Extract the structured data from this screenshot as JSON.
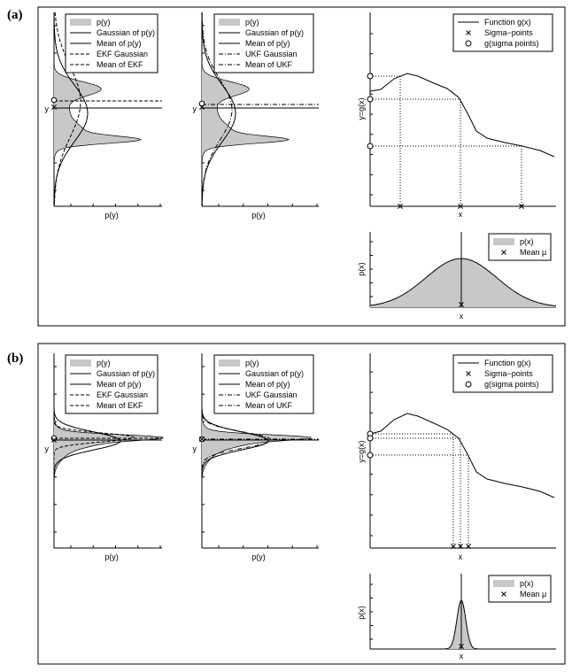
{
  "panels": [
    {
      "label": "(a)",
      "plots": {
        "ekf": {
          "xlabel": "p(y)",
          "ylabel": "y",
          "legend": [
            "p(y)",
            "Gaussian of p(y)",
            "Mean of p(y)",
            "EKF Gaussian",
            "Mean of EKF"
          ]
        },
        "ukf": {
          "xlabel": "p(y)",
          "ylabel": "y",
          "legend": [
            "p(y)",
            "Gaussian of p(y)",
            "Mean of p(y)",
            "UKF Gaussian",
            "Mean of UKF"
          ]
        },
        "func": {
          "xlabel": "x",
          "ylabel": "y=g(x)",
          "legend": [
            "Function g(x)",
            "Sigma−points",
            "g(sigma points)"
          ]
        },
        "px": {
          "xlabel": "x",
          "ylabel": "p(x)",
          "legend": [
            "p(x)",
            "Mean μ"
          ]
        }
      }
    },
    {
      "label": "(b)",
      "plots": {
        "ekf": {
          "xlabel": "p(y)",
          "ylabel": "y",
          "legend": [
            "p(y)",
            "Gaussian of p(y)",
            "Mean of p(y)",
            "EKF Gaussian",
            "Mean of EKF"
          ]
        },
        "ukf": {
          "xlabel": "p(y)",
          "ylabel": "y",
          "legend": [
            "p(y)",
            "Gaussian of p(y)",
            "Mean of p(y)",
            "UKF Gaussian",
            "Mean of UKF"
          ]
        },
        "func": {
          "xlabel": "x",
          "ylabel": "y=g(x)",
          "legend": [
            "Function g(x)",
            "Sigma−points",
            "g(sigma points)"
          ]
        },
        "px": {
          "xlabel": "x",
          "ylabel": "p(x)",
          "legend": [
            "p(x)",
            "Mean μ"
          ]
        }
      }
    }
  ],
  "colors": {
    "fill": "#c8c8c8",
    "line": "#000000"
  }
}
